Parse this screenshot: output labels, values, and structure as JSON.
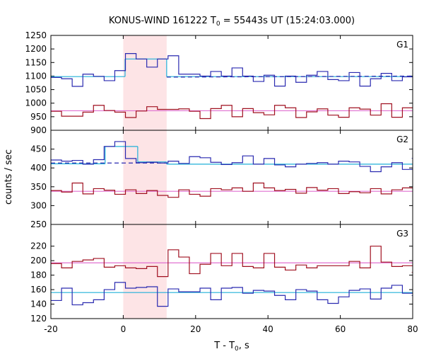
{
  "chart_data": {
    "type": "line",
    "title_main": "KONUS-WIND 161222 T",
    "title_sub": "0",
    "title_rest": " = 55443s UT (15:24:03.000)",
    "xlabel_main": "T - T",
    "xlabel_sub": "0",
    "xlabel_rest": ", s",
    "ylabel": "counts / sec",
    "xlim": [
      -20,
      80
    ],
    "xticks": [
      -20,
      0,
      20,
      40,
      60,
      80
    ],
    "highlight_interval": [
      0,
      12
    ],
    "bin_start": -20,
    "bin_width": 2.944,
    "panels": [
      {
        "name": "G1",
        "ylim": [
          900,
          1250
        ],
        "yticks": [
          900,
          950,
          1000,
          1050,
          1100,
          1150,
          1200,
          1250
        ],
        "series": [
          {
            "color": "#2a2ab0",
            "values": [
              1095,
              1090,
              1062,
              1107,
              1099,
              1083,
              1120,
              1183,
              1163,
              1133,
              1163,
              1175,
              1107,
              1107,
              1100,
              1117,
              1100,
              1130,
              1100,
              1080,
              1103,
              1063,
              1100,
              1077,
              1103,
              1117,
              1087,
              1083,
              1113,
              1063,
              1090,
              1110,
              1083,
              1097,
              1080,
              1093,
              1087,
              1093
            ]
          },
          {
            "color": "#a01020",
            "values": [
              970,
              952,
              952,
              967,
              992,
              973,
              967,
              947,
              971,
              987,
              977,
              977,
              979,
              970,
              943,
              980,
              992,
              950,
              980,
              965,
              957,
              992,
              983,
              947,
              968,
              979,
              956,
              948,
              983,
              978,
              956,
              998,
              948,
              983,
              967,
              953,
              985,
              978
            ]
          }
        ],
        "fits": [
          {
            "color": "#20b0d8",
            "segments": [
              [
                -20,
                1098,
                0.5,
                1098
              ],
              [
                0.5,
                1163,
                12,
                1163
              ],
              [
                12,
                1098,
                80,
                1098
              ]
            ]
          },
          {
            "color": "#2a2ab0",
            "dash": true,
            "segments": [
              [
                12,
                1096,
                80,
                1100
              ]
            ]
          },
          {
            "color": "#e070d0",
            "segments": [
              [
                -20,
                972,
                80,
                972
              ]
            ]
          }
        ]
      },
      {
        "name": "G2",
        "ylim": [
          250,
          500
        ],
        "yticks": [
          250,
          300,
          350,
          400,
          450
        ],
        "series": [
          {
            "color": "#2a2ab0",
            "values": [
              421,
              418,
              420,
              410,
              422,
              457,
              470,
              425,
              414,
              415,
              413,
              418,
              412,
              430,
              427,
              415,
              409,
              414,
              432,
              410,
              425,
              408,
              403,
              410,
              412,
              414,
              410,
              418,
              416,
              404,
              390,
              403,
              414,
              396,
              425,
              405,
              416,
              412
            ]
          },
          {
            "color": "#a01020",
            "values": [
              340,
              336,
              360,
              331,
              345,
              341,
              330,
              342,
              332,
              340,
              327,
              322,
              342,
              330,
              325,
              345,
              342,
              347,
              338,
              360,
              347,
              340,
              343,
              333,
              348,
              341,
              345,
              332,
              337,
              334,
              345,
              331,
              342,
              347,
              336,
              343,
              325,
              312
            ]
          }
        ],
        "fits": [
          {
            "color": "#20b0d8",
            "segments": [
              [
                -20,
                411,
                -5,
                411
              ],
              [
                -5,
                457,
                4,
                457
              ],
              [
                4,
                416,
                12,
                416
              ],
              [
                12,
                410,
                80,
                410
              ]
            ]
          },
          {
            "color": "#2a2ab0",
            "dash": true,
            "segments": [
              [
                -20,
                413,
                12,
                413
              ]
            ]
          },
          {
            "color": "#e070d0",
            "segments": [
              [
                -20,
                338,
                80,
                338
              ]
            ]
          }
        ]
      },
      {
        "name": "G3",
        "ylim": [
          120,
          250
        ],
        "yticks": [
          120,
          140,
          160,
          180,
          200,
          220
        ],
        "series": [
          {
            "color": "#a01020",
            "values": [
              196,
              190,
              199,
              201,
              203,
              191,
              193,
              190,
              189,
              192,
              178,
              215,
              205,
              182,
              195,
              210,
              193,
              210,
              192,
              190,
              210,
              191,
              187,
              194,
              190,
              193,
              193,
              193,
              199,
              190,
              220,
              198,
              192,
              193,
              191,
              195,
              184,
              212
            ]
          },
          {
            "color": "#2a2ab0",
            "values": [
              145,
              162,
              139,
              142,
              146,
              160,
              170,
              162,
              163,
              164,
              137,
              161,
              157,
              157,
              162,
              146,
              162,
              163,
              155,
              159,
              158,
              152,
              146,
              160,
              158,
              146,
              141,
              150,
              159,
              161,
              147,
              162,
              166,
              155,
              152,
              162,
              152,
              152
            ]
          }
        ],
        "fits": [
          {
            "color": "#e070d0",
            "segments": [
              [
                -20,
                197,
                80,
                197
              ]
            ]
          },
          {
            "color": "#20b0d8",
            "segments": [
              [
                -20,
                156,
                80,
                156
              ]
            ]
          }
        ]
      }
    ]
  }
}
